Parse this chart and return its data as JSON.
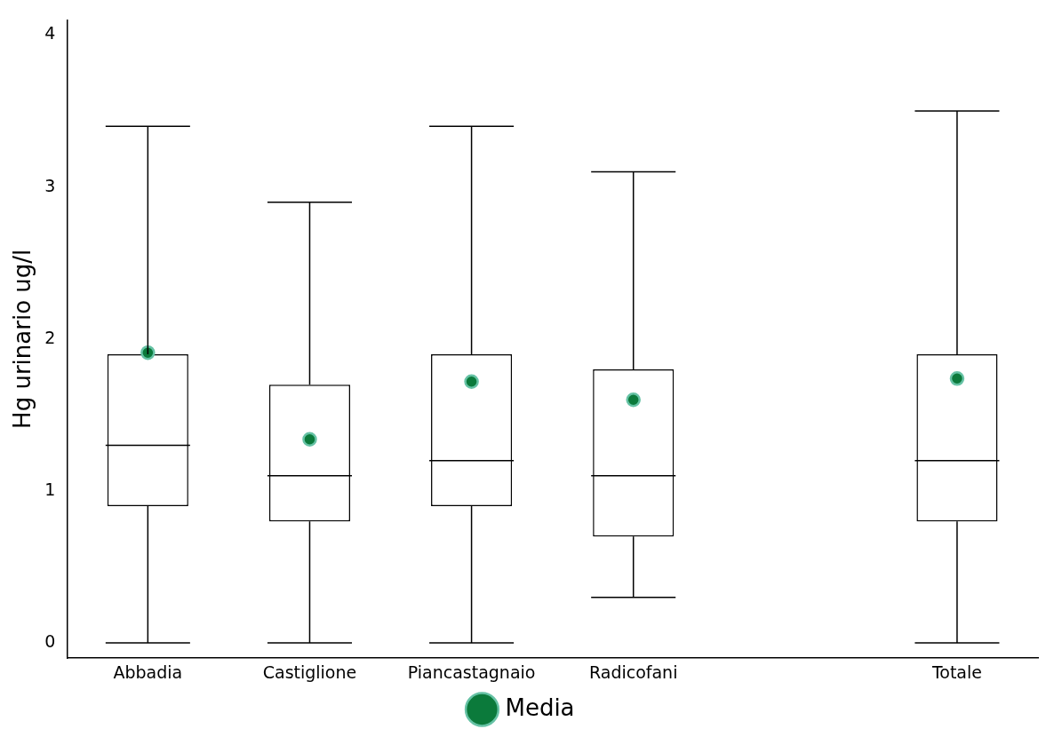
{
  "chart_data": {
    "type": "box",
    "ylabel": "Hg urinario ug/l",
    "categories": [
      "Abbadia",
      "Castiglione",
      "Piancastagnaio",
      "Radicofani",
      null,
      "Totale"
    ],
    "ylim": [
      -0.1,
      4.1
    ],
    "yticks": [
      0,
      1,
      2,
      3,
      4
    ],
    "grid": false,
    "legend": "bottom",
    "series": [
      {
        "color": "#000000",
        "boxes": [
          {
            "low": 0,
            "q1": 0.9,
            "median": 1.3,
            "q3": 1.9,
            "high": 3.4
          },
          {
            "low": 0,
            "q1": 0.8,
            "median": 1.1,
            "q3": 1.7,
            "high": 2.9
          },
          {
            "low": 0,
            "q1": 0.9,
            "median": 1.2,
            "q3": 1.9,
            "high": 3.4
          },
          {
            "low": 0.3,
            "q1": 0.7,
            "median": 1.1,
            "q3": 1.8,
            "high": 3.1
          },
          null,
          {
            "low": 0,
            "q1": 0.8,
            "median": 1.2,
            "q3": 1.9,
            "high": 3.5
          }
        ]
      },
      {
        "type": "scatter",
        "name": "Media",
        "color": "#0b7a3b",
        "marker": "circle",
        "x": [
          "Abbadia",
          "Castiglione",
          "Piancastagnaio",
          "Radicofani",
          "Totale"
        ],
        "values": [
          1.91,
          1.34,
          1.72,
          1.6,
          1.74
        ]
      }
    ]
  }
}
